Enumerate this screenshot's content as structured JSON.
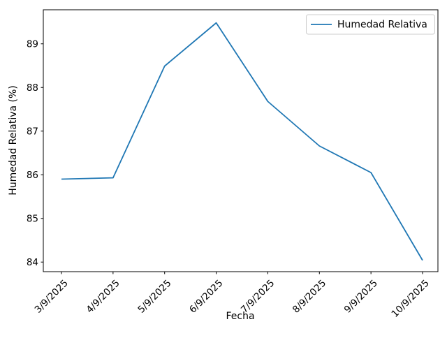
{
  "legend": {
    "label": "Humedad Relativa"
  },
  "chart_data": {
    "type": "line",
    "title": "",
    "xlabel": "Fecha",
    "ylabel": "Humedad Relativa (%)",
    "categories": [
      "3/9/2025",
      "4/9/2025",
      "5/9/2025",
      "6/9/2025",
      "7/9/2025",
      "8/9/2025",
      "9/9/2025",
      "10/9/2025"
    ],
    "series": [
      {
        "name": "Humedad Relativa",
        "values": [
          85.9,
          85.93,
          88.49,
          89.48,
          87.68,
          86.66,
          86.05,
          84.04
        ]
      }
    ],
    "ylim": [
      83.78,
      89.78
    ],
    "yticks": [
      84,
      85,
      86,
      87,
      88,
      89
    ],
    "xtick_rotation_deg": 45,
    "grid": false,
    "legend_position": "upper right",
    "line_color": "#1f77b4",
    "axis_color": "#000000",
    "legend_border_color": "#cccccc",
    "background_color": "#ffffff"
  }
}
